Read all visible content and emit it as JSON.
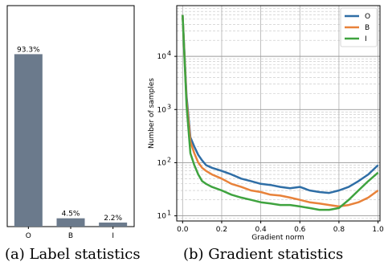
{
  "chart_data": [
    {
      "type": "bar",
      "categories": [
        "O",
        "B",
        "I"
      ],
      "values": [
        93.3,
        4.5,
        2.2
      ],
      "value_labels": [
        "93.3%",
        "4.5%",
        "2.2%"
      ],
      "ylim": [
        0,
        100
      ],
      "bar_color": "#6b7a8c",
      "caption": "(a) Label statistics"
    },
    {
      "type": "line",
      "x": [
        0.0,
        0.02,
        0.04,
        0.06,
        0.08,
        0.1,
        0.12,
        0.15,
        0.2,
        0.25,
        0.3,
        0.35,
        0.4,
        0.45,
        0.5,
        0.55,
        0.6,
        0.65,
        0.7,
        0.75,
        0.8,
        0.85,
        0.9,
        0.95,
        1.0
      ],
      "series": [
        {
          "name": "O",
          "color": "#2f6ea6",
          "values": [
            60000,
            1800,
            300,
            200,
            140,
            110,
            90,
            80,
            70,
            60,
            50,
            45,
            40,
            38,
            35,
            33,
            35,
            30,
            28,
            27,
            30,
            35,
            45,
            60,
            90
          ]
        },
        {
          "name": "B",
          "color": "#e8823a",
          "values": [
            60000,
            1500,
            250,
            150,
            100,
            80,
            70,
            60,
            50,
            40,
            35,
            30,
            28,
            25,
            24,
            22,
            20,
            18,
            17,
            16,
            15,
            16,
            18,
            22,
            30
          ]
        },
        {
          "name": "I",
          "color": "#3fa33f",
          "values": [
            60000,
            1200,
            150,
            90,
            60,
            45,
            40,
            35,
            30,
            25,
            22,
            20,
            18,
            17,
            16,
            16,
            15,
            14,
            13,
            13,
            14,
            20,
            30,
            45,
            65
          ]
        }
      ],
      "xlabel": "Gradient norm",
      "ylabel": "Number of samples",
      "xlim": [
        -0.03,
        1.01
      ],
      "ylim": [
        8,
        90000
      ],
      "yscale": "log",
      "xticks": [
        "0.0",
        "0.2",
        "0.4",
        "0.6",
        "0.8",
        "1.0"
      ],
      "yticks": [
        "10",
        "10",
        "10",
        "10",
        "10"
      ],
      "ytick_exponents": [
        "1",
        "2",
        "3",
        "4",
        ""
      ],
      "legend_position": "top-right",
      "grid": true,
      "caption": "(b) Gradient statistics"
    }
  ]
}
